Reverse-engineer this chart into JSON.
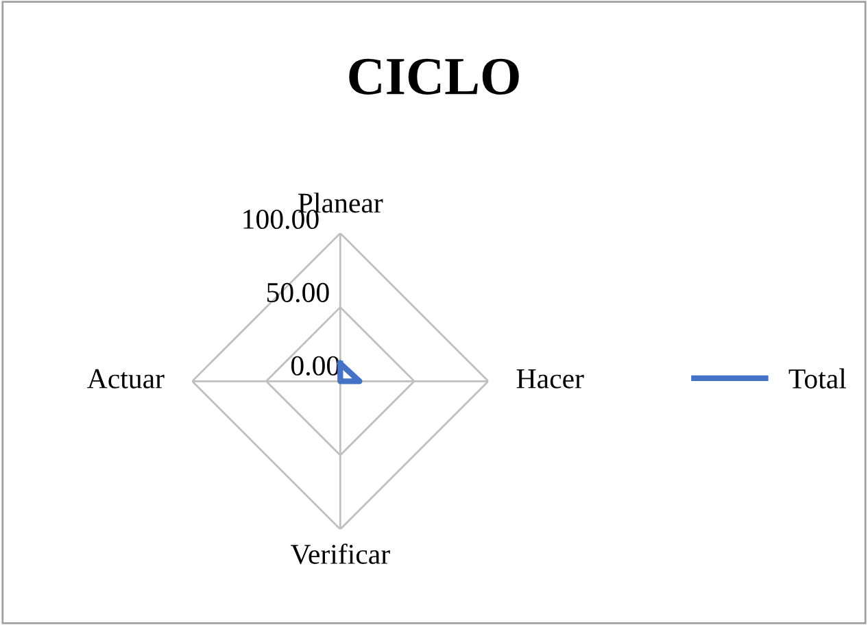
{
  "chart_data": {
    "type": "radar",
    "title": "CICLO",
    "categories": [
      "Planear",
      "Hacer",
      "Verificar",
      "Actuar"
    ],
    "series": [
      {
        "name": "Total",
        "color": "#4472c4",
        "values": [
          12,
          13,
          0,
          0
        ]
      }
    ],
    "ylim": [
      0,
      100
    ],
    "yticks": [
      {
        "value": 0,
        "label": "0.00"
      },
      {
        "value": 50,
        "label": "50.00"
      },
      {
        "value": 100,
        "label": "100.00"
      }
    ],
    "grid": true,
    "legend": "right",
    "marker": "none",
    "line_style": "solid"
  }
}
